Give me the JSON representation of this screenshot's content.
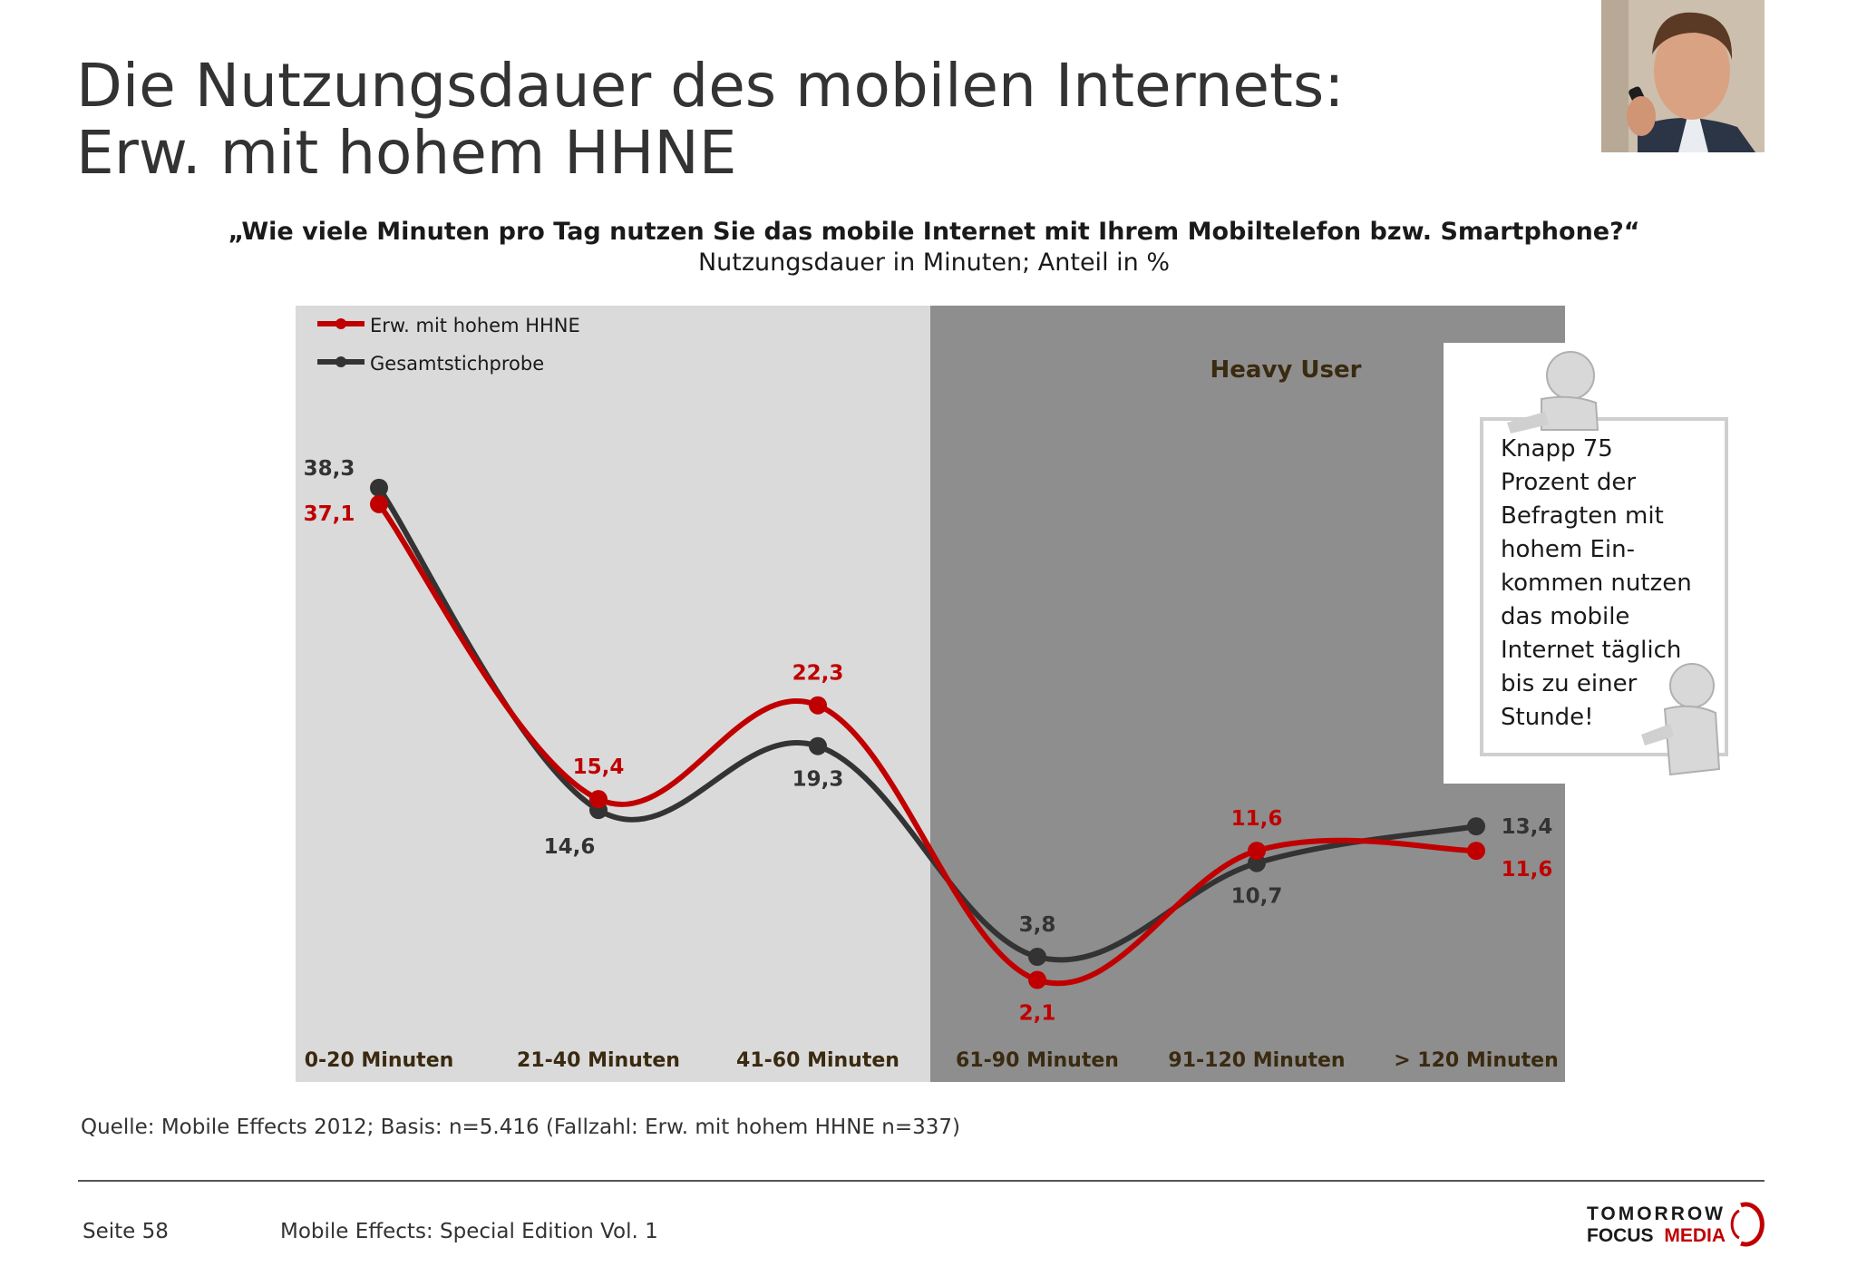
{
  "header": {
    "title_line1": "Die Nutzungsdauer des mobilen Internets:",
    "title_line2": "Erw. mit hohem HHNE"
  },
  "question": "„Wie viele Minuten pro Tag nutzen Sie das mobile Internet mit Ihrem Mobiltelefon bzw. Smartphone?“",
  "subtitle": "Nutzungsdauer in Minuten; Anteil in %",
  "heavy_user_label": "Heavy User",
  "note_lines": [
    "Knapp 75",
    "Prozent der",
    "Befragten mit",
    "hohem Ein-",
    "kommen nutzen",
    "das mobile",
    "Internet täglich",
    "bis zu einer",
    "Stunde!"
  ],
  "source": "Quelle: Mobile Effects 2012; Basis: n=5.416 (Fallzahl: Erw. mit hohem HHNE n=337)",
  "footer": {
    "page": "Seite 58",
    "edition": "Mobile Effects: Special Edition Vol. 1",
    "logo_line1": "TOMORROW",
    "logo_line2a": "FOCUS",
    "logo_line2b": "MEDIA"
  },
  "colors": {
    "red": "#c00000",
    "dark": "#333333",
    "light_panel": "#dadada",
    "dark_panel": "#8e8e8e",
    "axis_label": "#3a2a10"
  },
  "chart_data": {
    "type": "line",
    "categories": [
      "0-20 Minuten",
      "21-40 Minuten",
      "41-60 Minuten",
      "61-90 Minuten",
      "91-120 Minuten",
      "> 120 Minuten"
    ],
    "series": [
      {
        "name": "Erw. mit hohem HHNE",
        "color": "#c00000",
        "values": [
          37.1,
          15.4,
          22.3,
          2.1,
          11.6,
          11.6
        ],
        "labels": [
          "37,1",
          "15,4",
          "22,3",
          "2,1",
          "11,6",
          "11,6"
        ]
      },
      {
        "name": "Gesamtstichprobe",
        "color": "#333333",
        "values": [
          38.3,
          14.6,
          19.3,
          3.8,
          10.7,
          13.4
        ],
        "labels": [
          "38,3",
          "14,6",
          "19,3",
          "3,8",
          "10,7",
          "13,4"
        ]
      }
    ],
    "highlight_categories_from": 3,
    "legend_position": "top-left",
    "grid": false
  }
}
